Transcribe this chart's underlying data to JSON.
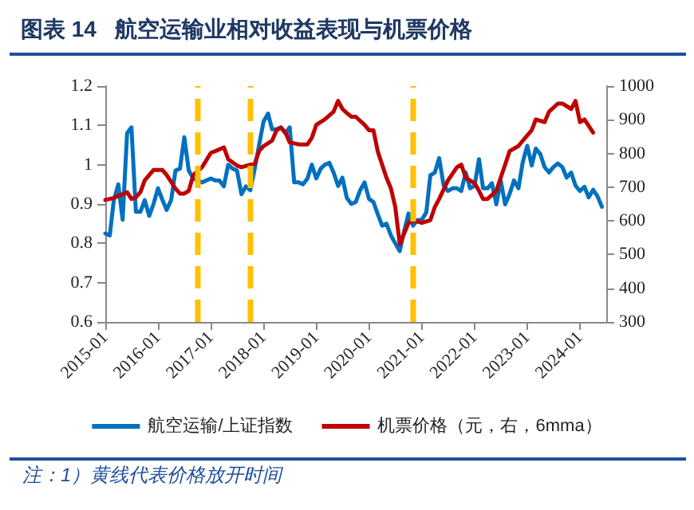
{
  "chart_data": {
    "type": "line",
    "title": "图表 14   航空运输业相对收益表现与机票价格",
    "annotations": [
      "注：1）黄线代表价格放开时间"
    ],
    "x": [
      "2015-01",
      "2015-02",
      "2015-03",
      "2015-04",
      "2015-05",
      "2015-06",
      "2015-07",
      "2015-08",
      "2015-09",
      "2015-10",
      "2015-11",
      "2015-12",
      "2016-01",
      "2016-02",
      "2016-03",
      "2016-04",
      "2016-05",
      "2016-06",
      "2016-07",
      "2016-08",
      "2016-09",
      "2016-10",
      "2016-11",
      "2016-12",
      "2017-01",
      "2017-02",
      "2017-03",
      "2017-04",
      "2017-05",
      "2017-06",
      "2017-07",
      "2017-08",
      "2017-09",
      "2017-10",
      "2017-11",
      "2017-12",
      "2018-01",
      "2018-02",
      "2018-03",
      "2018-04",
      "2018-05",
      "2018-06",
      "2018-07",
      "2018-08",
      "2018-09",
      "2018-10",
      "2018-11",
      "2018-12",
      "2019-01",
      "2019-02",
      "2019-03",
      "2019-04",
      "2019-05",
      "2019-06",
      "2019-07",
      "2019-08",
      "2019-09",
      "2019-10",
      "2019-11",
      "2019-12",
      "2020-01",
      "2020-02",
      "2020-03",
      "2020-04",
      "2020-05",
      "2020-06",
      "2020-07",
      "2020-08",
      "2020-09",
      "2020-10",
      "2020-11",
      "2020-12",
      "2021-01",
      "2021-02",
      "2021-03",
      "2021-04",
      "2021-05",
      "2021-06",
      "2021-07",
      "2021-08",
      "2021-09",
      "2021-10",
      "2021-11",
      "2021-12",
      "2022-01",
      "2022-02",
      "2022-03",
      "2022-04",
      "2022-05",
      "2022-06",
      "2022-07",
      "2022-08",
      "2022-09",
      "2022-10",
      "2022-11",
      "2022-12",
      "2023-01",
      "2023-02",
      "2023-03",
      "2023-04",
      "2023-05",
      "2023-06",
      "2023-07",
      "2023-08",
      "2023-09",
      "2023-10",
      "2023-11",
      "2023-12",
      "2024-01",
      "2024-02",
      "2024-03",
      "2024-04",
      "2024-05",
      "2024-06"
    ],
    "series": [
      {
        "name": "航空运输/上证指数",
        "color": "#0070c0",
        "values": [
          0.825,
          0.82,
          0.91,
          0.95,
          0.86,
          1.08,
          1.095,
          0.88,
          0.88,
          0.91,
          0.87,
          0.9,
          0.94,
          0.91,
          0.885,
          0.91,
          0.985,
          0.99,
          1.07,
          0.985,
          0.965,
          0.96,
          0.955,
          0.96,
          0.965,
          0.96,
          0.96,
          0.945,
          1.0,
          0.99,
          0.985,
          0.925,
          0.945,
          0.935,
          0.99,
          1.05,
          1.11,
          1.13,
          1.09,
          1.09,
          1.095,
          1.08,
          1.095,
          0.955,
          0.955,
          0.95,
          0.965,
          1.0,
          0.965,
          0.99,
          1.0,
          1.005,
          0.98,
          0.946,
          0.967,
          0.915,
          0.9,
          0.905,
          0.935,
          0.955,
          0.913,
          0.905,
          0.875,
          0.845,
          0.85,
          0.82,
          0.8,
          0.78,
          0.832,
          0.876,
          0.845,
          0.859,
          0.86,
          0.879,
          0.973,
          0.98,
          1.017,
          0.947,
          0.933,
          0.94,
          0.94,
          0.933,
          0.98,
          0.94,
          0.947,
          1.014,
          0.94,
          0.94,
          0.953,
          0.899,
          0.96,
          0.899,
          0.926,
          0.96,
          0.94,
          1.007,
          1.048,
          0.998,
          1.041,
          1.027,
          0.994,
          0.98,
          0.994,
          1.003,
          0.994,
          0.967,
          0.98,
          0.947,
          0.933,
          0.944,
          0.917,
          0.936,
          0.92,
          0.893
        ]
      },
      {
        "name": "机票价格（元，右，6mma）",
        "color": "#c00000",
        "axis": "y2",
        "x": [
          "2015-01",
          "2015-03",
          "2015-06",
          "2015-07",
          "2015-08",
          "2015-09",
          "2015-10",
          "2015-11",
          "2015-12",
          "2016-02",
          "2016-03",
          "2016-05",
          "2016-06",
          "2016-07",
          "2016-08",
          "2016-09",
          "2016-11",
          "2017-01",
          "2017-02",
          "2017-04",
          "2017-05",
          "2017-07",
          "2017-08",
          "2017-10",
          "2017-11",
          "2017-12",
          "2018-01",
          "2018-03",
          "2018-04",
          "2018-05",
          "2018-06",
          "2018-07",
          "2018-09",
          "2018-11",
          "2018-12",
          "2019-01",
          "2019-03",
          "2019-05",
          "2019-06",
          "2019-07",
          "2019-08",
          "2019-09",
          "2019-10",
          "2019-12",
          "2020-01",
          "2020-02",
          "2020-03",
          "2020-05",
          "2020-06",
          "2020-07",
          "2020-08",
          "2020-09",
          "2020-10",
          "2020-11",
          "2021-01",
          "2021-03",
          "2021-04",
          "2021-05",
          "2021-07",
          "2021-09",
          "2021-10",
          "2021-11",
          "2022-01",
          "2022-02",
          "2022-03",
          "2022-04",
          "2022-06",
          "2022-07",
          "2022-08",
          "2022-09",
          "2022-11",
          "2022-12",
          "2023-02",
          "2023-03",
          "2023-05",
          "2023-06",
          "2023-08",
          "2023-09",
          "2023-11",
          "2023-12",
          "2024-01",
          "2024-02",
          "2024-04"
        ],
        "values": [
          662,
          668,
          685,
          665,
          670,
          685,
          720,
          736,
          751,
          751,
          736,
          696,
          681,
          681,
          689,
          736,
          759,
          802,
          807,
          818,
          783,
          764,
          759,
          767,
          770,
          807,
          822,
          838,
          869,
          877,
          862,
          833,
          827,
          827,
          846,
          885,
          901,
          924,
          956,
          932,
          920,
          909,
          909,
          885,
          869,
          869,
          807,
          728,
          696,
          641,
          531,
          563,
          594,
          602,
          594,
          602,
          641,
          665,
          720,
          759,
          767,
          728,
          712,
          689,
          665,
          665,
          689,
          728,
          767,
          807,
          822,
          838,
          869,
          901,
          893,
          924,
          948,
          948,
          932,
          956,
          893,
          901,
          862
        ]
      }
    ],
    "xlim": [
      "2015-01",
      "2024-07"
    ],
    "xticks": [
      "2015-01",
      "2016-01",
      "2017-01",
      "2018-01",
      "2019-01",
      "2020-01",
      "2021-01",
      "2022-01",
      "2023-01",
      "2024-01"
    ],
    "ylim": [
      0.6,
      1.2
    ],
    "yticks": [
      0.6,
      0.7,
      0.8,
      0.9,
      1,
      1.1,
      1.2
    ],
    "y2lim": [
      300,
      1000
    ],
    "y2ticks": [
      300,
      400,
      500,
      600,
      700,
      800,
      900,
      1000
    ],
    "ref_lines": [
      {
        "axis": "x",
        "value": "2016-10",
        "color": "#ffc000",
        "line_style": "dashed"
      },
      {
        "axis": "x",
        "value": "2017-10",
        "color": "#ffc000",
        "line_style": "dashed"
      },
      {
        "axis": "x",
        "value": "2020-11",
        "color": "#ffc000",
        "line_style": "dashed"
      }
    ],
    "legend": "bottom",
    "grid": false,
    "marker": "none",
    "line_style": "solid"
  }
}
